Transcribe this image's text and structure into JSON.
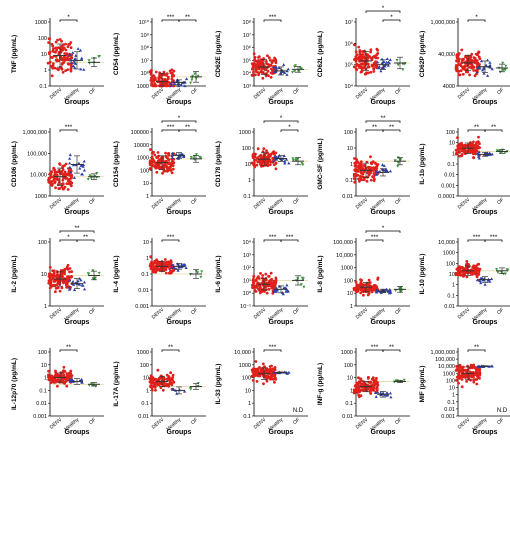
{
  "colors": {
    "denv": "#e0201b",
    "healthy": "#2a3fa8",
    "of": "#3a9a3a",
    "threshold": "#e8d9a0"
  },
  "chart_data": [
    {
      "type": "scatter",
      "ylabel": "TNF",
      "xlabel": "Groups",
      "categories": [
        "DENV",
        "Healthy",
        "OF"
      ],
      "y_ticks": [
        "0.1",
        "1",
        "10",
        "100",
        "1000"
      ],
      "ylim": [
        0.1,
        1000
      ],
      "log": true,
      "groups": [
        {
          "center": 8,
          "spread": 1.6,
          "n": 110
        },
        {
          "center": 4,
          "spread": 1.2,
          "n": 18
        },
        {
          "center": 3,
          "spread": 0.6,
          "n": 6
        }
      ],
      "sig": [
        {
          "a": 0,
          "b": 1,
          "label": "*",
          "tier": 1
        }
      ],
      "annotations": []
    },
    {
      "type": "scatter",
      "ylabel": "CD54",
      "xlabel": "Groups",
      "categories": [
        "DENV",
        "Healthy",
        "OF"
      ],
      "y_ticks": [
        "1000",
        "10⁶",
        "10⁷",
        "10⁸",
        "10⁹",
        "10¹⁰"
      ],
      "ylim": [
        1000,
        10000000000.0
      ],
      "log": true,
      "groups": [
        {
          "center": 3000,
          "spread": 2.0,
          "n": 110
        },
        {
          "center": 2500,
          "spread": 0.6,
          "n": 18
        },
        {
          "center": 10000,
          "spread": 1.3,
          "n": 7
        }
      ],
      "sig": [
        {
          "a": 0,
          "b": 1,
          "label": "***",
          "tier": 1
        },
        {
          "a": 1,
          "b": 2,
          "label": "**",
          "tier": 1
        }
      ],
      "annotations": []
    },
    {
      "type": "scatter",
      "ylabel": "CD62E",
      "xlabel": "Groups",
      "categories": [
        "DENV",
        "Healthy",
        "OF"
      ],
      "y_ticks": [
        "10³",
        "10⁴",
        "10⁵",
        "10⁶",
        "10⁷",
        "10⁸"
      ],
      "ylim": [
        1000,
        100000000.0
      ],
      "log": true,
      "groups": [
        {
          "center": 30000,
          "spread": 1.3,
          "n": 110
        },
        {
          "center": 15000,
          "spread": 0.7,
          "n": 18
        },
        {
          "center": 20000,
          "spread": 0.5,
          "n": 7
        }
      ],
      "sig": [
        {
          "a": 0,
          "b": 1,
          "label": "***",
          "tier": 1
        }
      ],
      "annotations": []
    },
    {
      "type": "scatter",
      "ylabel": "CD62L",
      "xlabel": "Groups",
      "categories": [
        "DENV",
        "Healthy",
        "OF"
      ],
      "y_ticks": [
        "10⁴",
        "10⁵",
        "10⁶",
        "10⁷"
      ],
      "ylim": [
        10000,
        10000000.0
      ],
      "log": true,
      "groups": [
        {
          "center": 150000,
          "spread": 1.0,
          "n": 110
        },
        {
          "center": 100000,
          "spread": 0.5,
          "n": 18
        },
        {
          "center": 120000,
          "spread": 0.6,
          "n": 6
        }
      ],
      "sig": [
        {
          "a": 0,
          "b": 2,
          "label": "*",
          "tier": 2
        },
        {
          "a": 1,
          "b": 2,
          "label": "*",
          "tier": 1
        }
      ],
      "annotations": []
    },
    {
      "type": "scatter",
      "ylabel": "CD62P",
      "xlabel": "Groups",
      "categories": [
        "DENV",
        "Healthy",
        "OF"
      ],
      "y_ticks": [
        "4000",
        "40,000",
        "1,000,000"
      ],
      "ylim": [
        1000,
        1000000
      ],
      "log": true,
      "groups": [
        {
          "center": 12000,
          "spread": 0.8,
          "n": 110
        },
        {
          "center": 8000,
          "spread": 0.6,
          "n": 18
        },
        {
          "center": 7000,
          "spread": 0.4,
          "n": 7
        }
      ],
      "sig": [
        {
          "a": 0,
          "b": 1,
          "label": "*",
          "tier": 1
        }
      ],
      "annotations": []
    },
    {
      "type": "scatter",
      "ylabel": "CD106",
      "xlabel": "Groups",
      "categories": [
        "DENV",
        "Healthy",
        "OF"
      ],
      "y_ticks": [
        "1000",
        "10,000",
        "100,000",
        "1,000,000"
      ],
      "ylim": [
        1000,
        1000000
      ],
      "log": true,
      "groups": [
        {
          "center": 8000,
          "spread": 0.9,
          "n": 110
        },
        {
          "center": 30000,
          "spread": 0.9,
          "n": 18
        },
        {
          "center": 8000,
          "spread": 0.3,
          "n": 7
        }
      ],
      "sig": [
        {
          "a": 0,
          "b": 1,
          "label": "***",
          "tier": 1
        }
      ],
      "annotations": []
    },
    {
      "type": "scatter",
      "ylabel": "CD154",
      "xlabel": "Groups",
      "categories": [
        "DENV",
        "Healthy",
        "OF"
      ],
      "y_ticks": [
        "1",
        "10",
        "100",
        "1000",
        "10000",
        "100000"
      ],
      "ylim": [
        1,
        100000
      ],
      "log": true,
      "groups": [
        {
          "center": 400,
          "spread": 1.2,
          "n": 110
        },
        {
          "center": 1500,
          "spread": 0.5,
          "n": 18
        },
        {
          "center": 800,
          "spread": 0.6,
          "n": 7
        }
      ],
      "sig": [
        {
          "a": 0,
          "b": 2,
          "label": "*",
          "tier": 2
        },
        {
          "a": 0,
          "b": 1,
          "label": "***",
          "tier": 1
        },
        {
          "a": 1,
          "b": 2,
          "label": "**",
          "tier": 1
        }
      ],
      "annotations": []
    },
    {
      "type": "scatter",
      "ylabel": "CD178",
      "xlabel": "Groups",
      "categories": [
        "DENV",
        "Healthy",
        "OF"
      ],
      "y_ticks": [
        "0.1",
        "1",
        "10",
        "100",
        "1000"
      ],
      "ylim": [
        0.1,
        1000
      ],
      "log": true,
      "groups": [
        {
          "center": 20,
          "spread": 0.9,
          "n": 110
        },
        {
          "center": 22,
          "spread": 0.4,
          "n": 18
        },
        {
          "center": 15,
          "spread": 0.5,
          "n": 7
        }
      ],
      "sig": [
        {
          "a": 0,
          "b": 2,
          "label": "*",
          "tier": 2
        },
        {
          "a": 1,
          "b": 2,
          "label": "*",
          "tier": 1
        }
      ],
      "annotations": []
    },
    {
      "type": "scatter",
      "ylabel": "GMC-SF",
      "xlabel": "Groups",
      "categories": [
        "DENV",
        "Healthy",
        "OF"
      ],
      "y_ticks": [
        "0.01",
        "0.1",
        "1",
        "10",
        "100"
      ],
      "ylim": [
        0.01,
        100
      ],
      "log": true,
      "groups": [
        {
          "center": 0.4,
          "spread": 1.0,
          "n": 110
        },
        {
          "center": 0.3,
          "spread": 0.5,
          "n": 14
        },
        {
          "center": 1.5,
          "spread": 0.5,
          "n": 7
        }
      ],
      "sig": [
        {
          "a": 0,
          "b": 2,
          "label": "**",
          "tier": 2
        },
        {
          "a": 0,
          "b": 1,
          "label": "**",
          "tier": 1
        },
        {
          "a": 1,
          "b": 2,
          "label": "**",
          "tier": 1
        }
      ],
      "annotations": []
    },
    {
      "type": "scatter",
      "ylabel": "IL-1b",
      "xlabel": "Groups",
      "categories": [
        "DENV",
        "Healthy",
        "OF"
      ],
      "y_ticks": [
        "0.0001",
        "0.001",
        "0.01",
        "0.1",
        "1",
        "10",
        "100"
      ],
      "ylim": [
        0.0001,
        100
      ],
      "log": true,
      "groups": [
        {
          "center": 3,
          "spread": 1.1,
          "n": 110
        },
        {
          "center": 0.8,
          "spread": 0.4,
          "n": 14
        },
        {
          "center": 1.5,
          "spread": 0.4,
          "n": 7
        }
      ],
      "sig": [
        {
          "a": 0,
          "b": 1,
          "label": "**",
          "tier": 1
        },
        {
          "a": 1,
          "b": 2,
          "label": "**",
          "tier": 1
        }
      ],
      "annotations": []
    },
    {
      "type": "scatter",
      "ylabel": "IL-2",
      "xlabel": "Groups",
      "categories": [
        "DENV",
        "Healthy",
        "OF"
      ],
      "y_ticks": [
        "1",
        "10",
        "100"
      ],
      "ylim": [
        1,
        100
      ],
      "log": true,
      "groups": [
        {
          "center": 7,
          "spread": 0.5,
          "n": 110
        },
        {
          "center": 5,
          "spread": 0.35,
          "n": 18
        },
        {
          "center": 9,
          "spread": 0.3,
          "n": 7
        }
      ],
      "sig": [
        {
          "a": 0,
          "b": 2,
          "label": "**",
          "tier": 2
        },
        {
          "a": 0,
          "b": 1,
          "label": "*",
          "tier": 1
        },
        {
          "a": 1,
          "b": 2,
          "label": "**",
          "tier": 1
        }
      ],
      "annotations": []
    },
    {
      "type": "scatter",
      "ylabel": "IL-4",
      "xlabel": "Groups",
      "categories": [
        "DENV",
        "Healthy",
        "OF"
      ],
      "y_ticks": [
        "0.001",
        "0.01",
        "0.1",
        "1",
        "10"
      ],
      "ylim": [
        0.001,
        10
      ],
      "log": true,
      "groups": [
        {
          "center": 0.3,
          "spread": 0.7,
          "n": 110
        },
        {
          "center": 0.3,
          "spread": 0.4,
          "n": 18
        },
        {
          "center": 0.1,
          "spread": 0.6,
          "n": 5
        }
      ],
      "sig": [
        {
          "a": 0,
          "b": 1,
          "label": "***",
          "tier": 1
        }
      ],
      "annotations": []
    },
    {
      "type": "scatter",
      "ylabel": "IL-6",
      "xlabel": "Groups",
      "categories": [
        "DENV",
        "Healthy",
        "OF"
      ],
      "y_ticks": [
        "10⁻¹",
        "10⁰",
        "10¹",
        "10²",
        "10³",
        "10⁴"
      ],
      "ylim": [
        0.1,
        10000
      ],
      "log": true,
      "groups": [
        {
          "center": 5,
          "spread": 1.0,
          "n": 110
        },
        {
          "center": 2,
          "spread": 0.6,
          "n": 18
        },
        {
          "center": 10,
          "spread": 0.8,
          "n": 7
        }
      ],
      "sig": [
        {
          "a": 0,
          "b": 1,
          "label": "***",
          "tier": 1
        },
        {
          "a": 1,
          "b": 2,
          "label": "***",
          "tier": 1
        }
      ],
      "annotations": []
    },
    {
      "type": "scatter",
      "ylabel": "IL-8",
      "xlabel": "Groups",
      "categories": [
        "DENV",
        "Healthy",
        "OF"
      ],
      "y_ticks": [
        "1",
        "10",
        "100",
        "1000",
        "10,000",
        "100,000"
      ],
      "ylim": [
        1,
        100000
      ],
      "log": true,
      "groups": [
        {
          "center": 30,
          "spread": 0.8,
          "n": 110
        },
        {
          "center": 15,
          "spread": 0.3,
          "n": 18
        },
        {
          "center": 20,
          "spread": 0.5,
          "n": 6
        }
      ],
      "sig": [
        {
          "a": 0,
          "b": 2,
          "label": "*",
          "tier": 2
        },
        {
          "a": 0,
          "b": 1,
          "label": "***",
          "tier": 1
        }
      ],
      "annotations": []
    },
    {
      "type": "scatter",
      "ylabel": "IL-10",
      "xlabel": "Groups",
      "categories": [
        "DENV",
        "Healthy",
        "OF"
      ],
      "y_ticks": [
        "0.01",
        "0.1",
        "1",
        "10",
        "100",
        "1000",
        "10,000"
      ],
      "ylim": [
        0.01,
        10000
      ],
      "log": true,
      "groups": [
        {
          "center": 20,
          "spread": 1.0,
          "n": 110
        },
        {
          "center": 3,
          "spread": 0.6,
          "n": 14
        },
        {
          "center": 20,
          "spread": 0.6,
          "n": 7
        }
      ],
      "sig": [
        {
          "a": 0,
          "b": 1,
          "label": "***",
          "tier": 1
        },
        {
          "a": 1,
          "b": 2,
          "label": "***",
          "tier": 1
        }
      ],
      "annotations": []
    },
    {
      "type": "scatter",
      "ylabel": "IL-12p70",
      "xlabel": "Groups",
      "categories": [
        "DENV",
        "Healthy",
        "OF"
      ],
      "y_ticks": [
        "0.001",
        "0.01",
        "0.1",
        "1",
        "10",
        "100"
      ],
      "ylim": [
        0.001,
        100
      ],
      "log": true,
      "groups": [
        {
          "center": 1,
          "spread": 0.8,
          "n": 110
        },
        {
          "center": 0.5,
          "spread": 0.5,
          "n": 14
        },
        {
          "center": 0.3,
          "spread": 0.3,
          "n": 5
        }
      ],
      "sig": [
        {
          "a": 0,
          "b": 1,
          "label": "**",
          "tier": 1
        }
      ],
      "annotations": []
    },
    {
      "type": "scatter",
      "ylabel": "IL-17A",
      "xlabel": "Groups",
      "categories": [
        "DENV",
        "Healthy",
        "OF"
      ],
      "y_ticks": [
        "0.01",
        "0.1",
        "1",
        "10",
        "100",
        "1000"
      ],
      "ylim": [
        0.01,
        1000
      ],
      "log": true,
      "groups": [
        {
          "center": 5,
          "spread": 0.9,
          "n": 110
        },
        {
          "center": 1,
          "spread": 0.6,
          "n": 6
        },
        {
          "center": 2,
          "spread": 0.5,
          "n": 5
        }
      ],
      "sig": [
        {
          "a": 0,
          "b": 1,
          "label": "**",
          "tier": 1
        }
      ],
      "annotations": []
    },
    {
      "type": "scatter",
      "ylabel": "IL-33",
      "xlabel": "Groups",
      "categories": [
        "DENV",
        "Healthy",
        "OF"
      ],
      "y_ticks": [
        "0.1",
        "1",
        "10",
        "100",
        "1000",
        "10,000"
      ],
      "ylim": [
        0.1,
        10000
      ],
      "log": true,
      "groups": [
        {
          "center": 200,
          "spread": 1.0,
          "n": 110
        },
        {
          "center": 250,
          "spread": 0.1,
          "n": 12
        },
        {
          "center": null,
          "spread": 0,
          "n": 0
        }
      ],
      "sig": [
        {
          "a": 0,
          "b": 1,
          "label": "***",
          "tier": 1
        }
      ],
      "annotations": [
        {
          "group": 2,
          "text": "N.D"
        }
      ]
    },
    {
      "type": "scatter",
      "ylabel": "INF-g",
      "xlabel": "Groups",
      "categories": [
        "DENV",
        "Healthy",
        "OF"
      ],
      "y_ticks": [
        "0.01",
        "0.1",
        "1",
        "10",
        "100",
        "1000"
      ],
      "ylim": [
        0.01,
        1000
      ],
      "log": true,
      "groups": [
        {
          "center": 2,
          "spread": 0.9,
          "n": 110
        },
        {
          "center": 0.5,
          "spread": 0.5,
          "n": 14
        },
        {
          "center": 5,
          "spread": 0.2,
          "n": 7
        }
      ],
      "sig": [
        {
          "a": 0,
          "b": 1,
          "label": "***",
          "tier": 1
        },
        {
          "a": 1,
          "b": 2,
          "label": "**",
          "tier": 1
        }
      ],
      "annotations": []
    },
    {
      "type": "scatter",
      "ylabel": "MIF",
      "xlabel": "Groups",
      "categories": [
        "DENV",
        "Healthy",
        "OF"
      ],
      "y_ticks": [
        "0.001",
        "0.01",
        "0.1",
        "1",
        "10",
        "100",
        "1000",
        "10,000",
        "100,000",
        "1,000,000"
      ],
      "ylim": [
        0.001,
        1000000
      ],
      "log": true,
      "groups": [
        {
          "center": 1000,
          "spread": 2.0,
          "n": 110
        },
        {
          "center": 10000,
          "spread": 0.15,
          "n": 14
        },
        {
          "center": null,
          "spread": 0,
          "n": 0
        }
      ],
      "sig": [
        {
          "a": 0,
          "b": 1,
          "label": "**",
          "tier": 1
        }
      ],
      "annotations": [
        {
          "group": 2,
          "text": "N.D"
        }
      ]
    }
  ]
}
